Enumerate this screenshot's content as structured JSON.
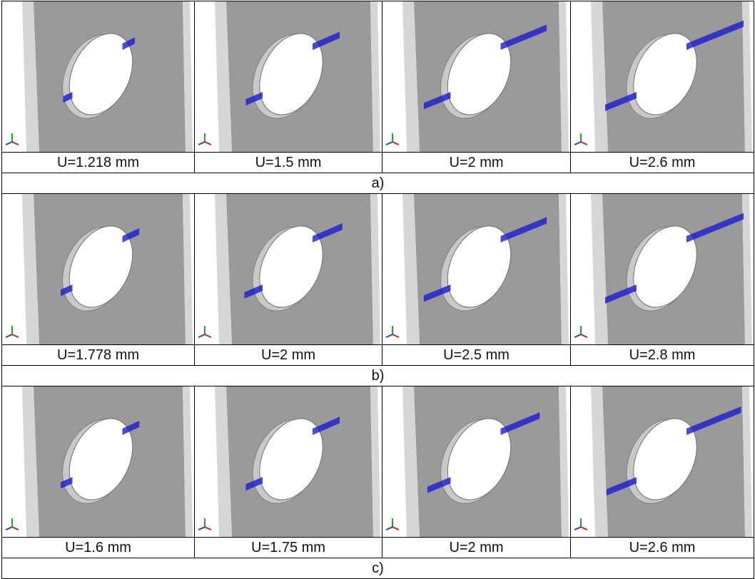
{
  "figure": {
    "rows": [
      {
        "caption": "a)",
        "panels": [
          {
            "label": "U=1.218 mm",
            "crack_level": 0.12
          },
          {
            "label": "U=1.5 mm",
            "crack_level": 0.4
          },
          {
            "label": "U=2 mm",
            "crack_level": 0.75
          },
          {
            "label": "U=2.6 mm",
            "crack_level": 1.0
          }
        ]
      },
      {
        "caption": "b)",
        "panels": [
          {
            "label": "U=1.778 mm",
            "crack_level": 0.2
          },
          {
            "label": "U=2 mm",
            "crack_level": 0.45
          },
          {
            "label": "U=2.5 mm",
            "crack_level": 0.75
          },
          {
            "label": "U=2.8 mm",
            "crack_level": 1.0
          }
        ]
      },
      {
        "caption": "c)",
        "panels": [
          {
            "label": "U=1.6 mm",
            "crack_level": 0.2
          },
          {
            "label": "U=1.75 mm",
            "crack_level": 0.4
          },
          {
            "label": "U=2 mm",
            "crack_level": 0.62
          },
          {
            "label": "U=2.6 mm",
            "crack_level": 0.95
          }
        ]
      }
    ],
    "colors": {
      "plate": "#9a9a9a",
      "plate_edge": "#d6d6d6",
      "hole_rim": "#c8c8c8",
      "crack": "#1a1ad0",
      "background": "#ffffff"
    }
  }
}
